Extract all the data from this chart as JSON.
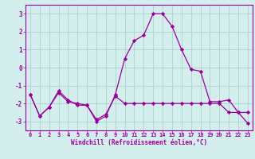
{
  "xlabel": "Windchill (Refroidissement éolien,°C)",
  "background_color": "#d4eeee",
  "grid_color": "#b0d8d0",
  "line_color": "#990099",
  "x": [
    0,
    1,
    2,
    3,
    4,
    5,
    6,
    7,
    8,
    9,
    10,
    11,
    12,
    13,
    14,
    15,
    16,
    17,
    18,
    19,
    20,
    21,
    22,
    23
  ],
  "line1": [
    -1.5,
    -2.7,
    -2.2,
    -1.4,
    -1.9,
    -2.0,
    -2.1,
    -2.9,
    -2.6,
    -1.6,
    -2.0,
    -2.0,
    -2.0,
    -2.0,
    -2.0,
    -2.0,
    -2.0,
    -2.0,
    -2.0,
    -2.0,
    -2.0,
    -2.5,
    -2.5,
    -2.5
  ],
  "line2": [
    -1.5,
    -2.7,
    -2.2,
    -1.3,
    -1.8,
    -2.1,
    -2.1,
    -3.0,
    -2.7,
    -1.5,
    0.5,
    1.5,
    1.8,
    3.0,
    3.0,
    2.3,
    1.0,
    -0.1,
    -0.2,
    -1.9,
    -1.9,
    -1.8,
    -2.5,
    -3.1
  ],
  "ylim": [
    -3.5,
    3.5
  ],
  "xlim": [
    -0.5,
    23.5
  ],
  "yticks": [
    -3,
    -2,
    -1,
    0,
    1,
    2,
    3
  ],
  "xticks": [
    0,
    1,
    2,
    3,
    4,
    5,
    6,
    7,
    8,
    9,
    10,
    11,
    12,
    13,
    14,
    15,
    16,
    17,
    18,
    19,
    20,
    21,
    22,
    23
  ],
  "xtick_labels": [
    "0",
    "1",
    "2",
    "3",
    "4",
    "5",
    "6",
    "7",
    "8",
    "9",
    "10",
    "11",
    "12",
    "13",
    "14",
    "15",
    "16",
    "17",
    "18",
    "19",
    "20",
    "21",
    "22",
    "23"
  ],
  "marker": "D",
  "markersize": 2.2,
  "linewidth": 0.9,
  "tick_fontsize": 5.0,
  "xlabel_fontsize": 5.5,
  "ylabel_fontsize": 5.5
}
